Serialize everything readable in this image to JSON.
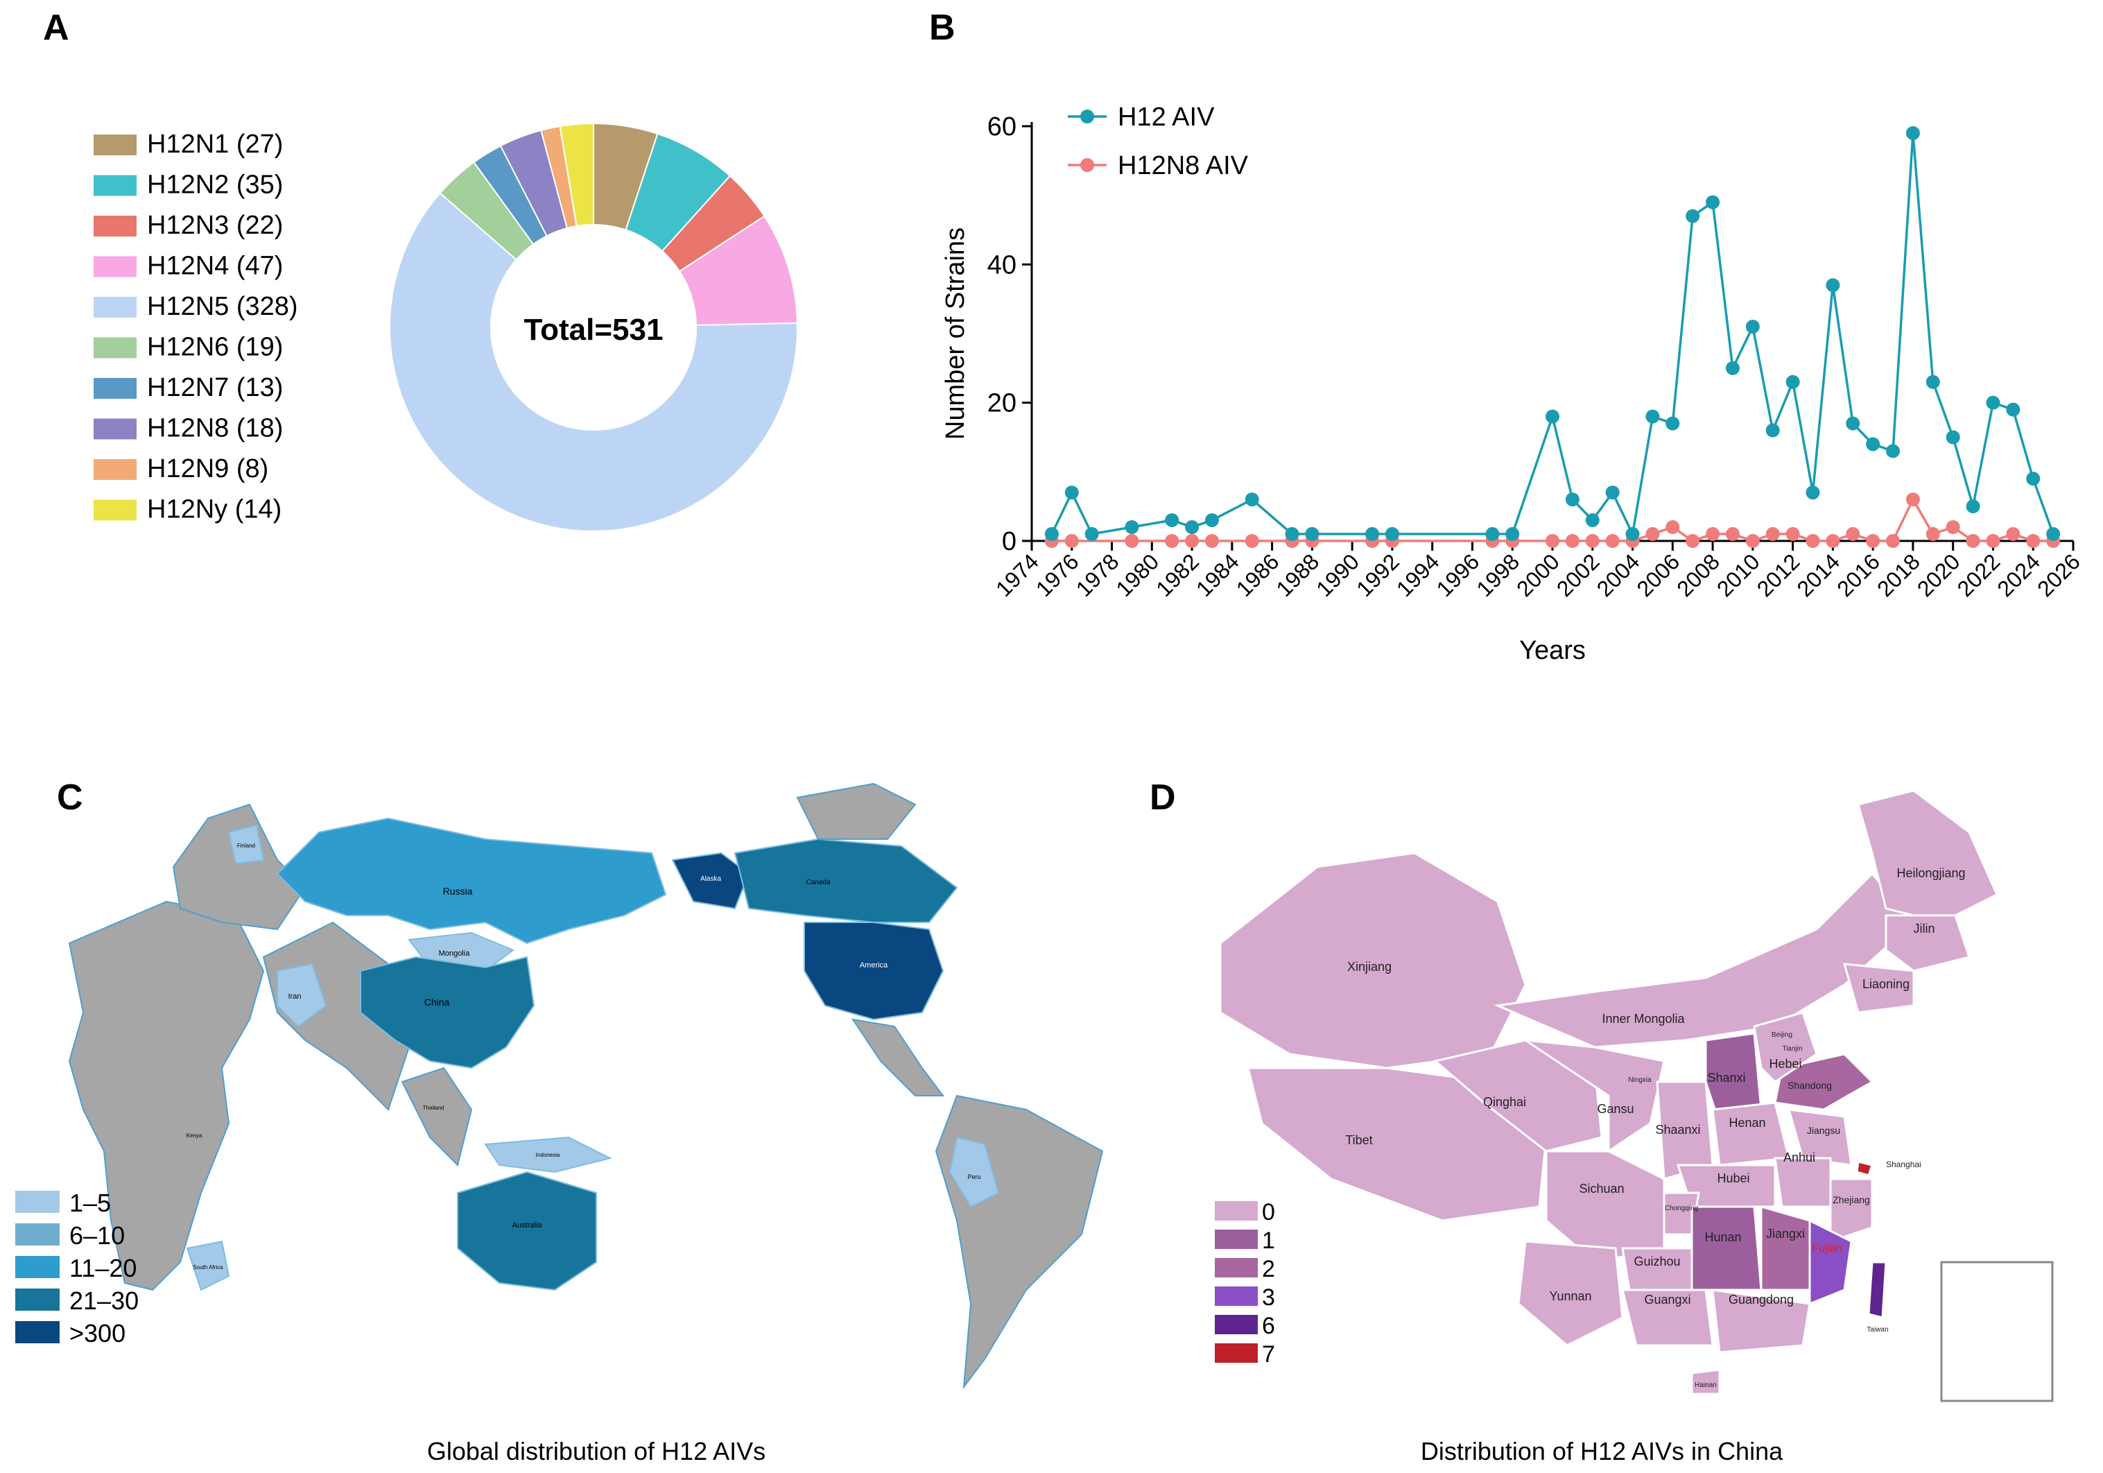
{
  "panels": {
    "a": "A",
    "b": "B",
    "c": "C",
    "d": "D"
  },
  "chart_data": [
    {
      "type": "pie",
      "variant": "donut",
      "center_label": "Total=531",
      "slices": [
        {
          "label": "H12N1 (27)",
          "name": "H12N1",
          "value": 27,
          "color": "#b69a6c"
        },
        {
          "label": "H12N2 (35)",
          "name": "H12N2",
          "value": 35,
          "color": "#40c1c9"
        },
        {
          "label": "H12N3 (22)",
          "name": "H12N3",
          "value": 22,
          "color": "#e8766c"
        },
        {
          "label": "H12N4 (47)",
          "name": "H12N4",
          "value": 47,
          "color": "#f8a8e2"
        },
        {
          "label": "H12N5 (328)",
          "name": "H12N5",
          "value": 328,
          "color": "#bdd5f5"
        },
        {
          "label": "H12N6 (19)",
          "name": "H12N6",
          "value": 19,
          "color": "#a2cf9a"
        },
        {
          "label": "H12N7 (13)",
          "name": "H12N7",
          "value": 13,
          "color": "#5a98c6"
        },
        {
          "label": "H12N8 (18)",
          "name": "H12N8",
          "value": 18,
          "color": "#8b83c3"
        },
        {
          "label": "H12N9 (8)",
          "name": "H12N9",
          "value": 8,
          "color": "#f2ab74"
        },
        {
          "label": "H12Ny (14)",
          "name": "H12Ny",
          "value": 14,
          "color": "#ece446"
        }
      ]
    },
    {
      "type": "line",
      "xlabel": "Years",
      "ylabel": "Number of Strains",
      "xlim": [
        1974,
        2026
      ],
      "ylim": [
        0,
        60
      ],
      "xticks": [
        "1974",
        "1976",
        "1978",
        "1980",
        "1982",
        "1984",
        "1986",
        "1988",
        "1990",
        "1992",
        "1994",
        "1996",
        "1998",
        "2000",
        "2002",
        "2004",
        "2006",
        "2008",
        "2010",
        "2012",
        "2014",
        "2016",
        "2018",
        "2020",
        "2022",
        "2024",
        "2026"
      ],
      "yticks": [
        "0",
        "20",
        "40",
        "60"
      ],
      "series": [
        {
          "name": "H12 AIV",
          "color": "#1a9cb0",
          "x": [
            1975,
            1976,
            1977,
            1979,
            1981,
            1982,
            1983,
            1985,
            1987,
            1988,
            1991,
            1992,
            1997,
            1998,
            2000,
            2001,
            2002,
            2003,
            2004,
            2005,
            2006,
            2007,
            2008,
            2009,
            2010,
            2011,
            2012,
            2013,
            2014,
            2015,
            2016,
            2017,
            2018,
            2019,
            2020,
            2021,
            2022,
            2023,
            2024,
            2025
          ],
          "y": [
            1,
            7,
            1,
            2,
            3,
            2,
            3,
            6,
            1,
            1,
            1,
            1,
            1,
            1,
            18,
            6,
            3,
            7,
            1,
            18,
            17,
            47,
            49,
            25,
            31,
            16,
            23,
            7,
            37,
            17,
            14,
            13,
            59,
            23,
            15,
            5,
            20,
            19,
            9,
            1
          ]
        },
        {
          "name": "H12N8 AIV",
          "color": "#f07b7b",
          "x": [
            1975,
            1976,
            1979,
            1981,
            1982,
            1983,
            1985,
            1987,
            1988,
            1991,
            1992,
            1997,
            1998,
            2000,
            2001,
            2002,
            2003,
            2004,
            2005,
            2006,
            2007,
            2008,
            2009,
            2010,
            2011,
            2012,
            2013,
            2014,
            2015,
            2016,
            2017,
            2018,
            2019,
            2020,
            2021,
            2022,
            2023,
            2024,
            2025
          ],
          "y": [
            0,
            0,
            0,
            0,
            0,
            0,
            0,
            0,
            0,
            0,
            0,
            0,
            0,
            0,
            0,
            0,
            0,
            0,
            1,
            2,
            0,
            1,
            1,
            0,
            1,
            1,
            0,
            0,
            1,
            0,
            0,
            6,
            1,
            2,
            0,
            0,
            1,
            0,
            0
          ]
        }
      ]
    }
  ],
  "map_global": {
    "caption": "Global distribution of H12 AIVs",
    "legend": [
      {
        "label": "1–5",
        "color": "#a3c9e8"
      },
      {
        "label": "6–10",
        "color": "#6fadcf"
      },
      {
        "label": "11–20",
        "color": "#2e9ccd"
      },
      {
        "label": "21–30",
        "color": "#17759c"
      },
      {
        "label": ">300",
        "color": "#0a4680"
      }
    ],
    "land_color": "#a6a6a6",
    "labels": {
      "russia": "Russia",
      "alaska": "Alaska",
      "canada": "Canada",
      "america": "America",
      "china": "China",
      "mongolia": "Mongolia",
      "iran": "Iran",
      "australia": "Australia",
      "peru": "Peru",
      "south_africa": "South Africa",
      "kenya": "Kenya",
      "finland": "Finland",
      "thailand": "Thailand",
      "indonesia": "Indonesia"
    }
  },
  "map_china": {
    "caption": "Distribution of H12 AIVs in China",
    "legend": [
      {
        "label": "0",
        "color": "#d6a9cf"
      },
      {
        "label": "1",
        "color": "#9b5f9e"
      },
      {
        "label": "2",
        "color": "#a8679f"
      },
      {
        "label": "3",
        "color": "#8a4fc4"
      },
      {
        "label": "6",
        "color": "#5e2590"
      },
      {
        "label": "7",
        "color": "#c0202a"
      }
    ],
    "provinces": {
      "heilongjiang": "Heilongjiang",
      "jilin": "Jilin",
      "liaoning": "Liaoning",
      "xinjiang": "Xinjiang",
      "inner_mongolia": "Inner Mongolia",
      "beijing": "Beijing",
      "tianjin": "Tianjin",
      "hebei": "Hebei",
      "shanxi": "Shanxi",
      "shandong": "Shandong",
      "qinghai": "Qinghai",
      "gansu": "Gansu",
      "ningxia": "Ningxia",
      "tibet": "Tibet",
      "shaanxi": "Shaanxi",
      "henan": "Henan",
      "jiangsu": "Jiangsu",
      "anhui": "Anhui",
      "shanghai": "Shanghai",
      "sichuan": "Sichuan",
      "hubei": "Hubei",
      "chongqing": "Chongqing",
      "zhejiang": "Zhejiang",
      "hunan": "Hunan",
      "jiangxi": "Jiangxi",
      "fujian": "Fujian",
      "guizhou": "Guizhou",
      "yunnan": "Yunnan",
      "guangxi": "Guangxi",
      "guangdong": "Guangdong",
      "hainan": "Hainan",
      "taiwan": "Taiwan"
    }
  }
}
